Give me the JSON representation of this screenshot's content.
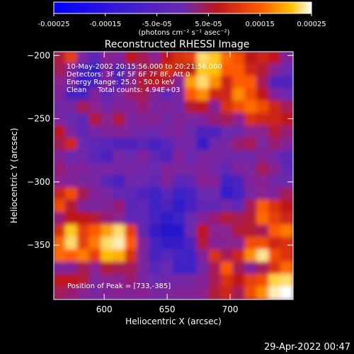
{
  "colorbar": {
    "tick_labels": [
      "-0.00025",
      "-0.00015",
      "-5.0e-05",
      "5.0e-05",
      "0.00015",
      "0.00025"
    ],
    "tick_values": [
      -0.00025,
      -0.00015,
      -5e-05,
      5e-05,
      0.00015,
      0.00025
    ],
    "range": [
      -0.00025,
      0.00025
    ],
    "units": "(photons cm⁻² s⁻¹ asec⁻²)",
    "stops": [
      {
        "v": -0.00025,
        "color": "#0000ff"
      },
      {
        "v": -0.00012,
        "color": "#3a1ad6"
      },
      {
        "v": 0.0,
        "color": "#6a2ab0"
      },
      {
        "v": 7e-05,
        "color": "#c01818"
      },
      {
        "v": 0.00015,
        "color": "#ff5a00"
      },
      {
        "v": 0.00021,
        "color": "#ffc000"
      },
      {
        "v": 0.00025,
        "color": "#ffffff"
      }
    ]
  },
  "chart_data": {
    "type": "heatmap",
    "title": "Reconstructed RHESSI Image",
    "xlabel": "Heliocentric X (arcsec)",
    "ylabel": "Heliocentric Y (arcsec)",
    "xlim": [
      560,
      750
    ],
    "ylim": [
      -393,
      -197
    ],
    "x_ticks": [
      600,
      650,
      700
    ],
    "x_tick_labels": [
      "600",
      "650",
      "700"
    ],
    "y_ticks": [
      -200,
      -250,
      -300,
      -350
    ],
    "y_tick_labels": [
      "−200",
      "−250",
      "−300",
      "−350"
    ],
    "info_lines": [
      "10-May-2002 20:15:56.000 to 20:21:56.000",
      "Detectors: 3F 4F 5F 6F 7F 8F, Att 0",
      "Energy Range: 25.0 - 50.0 keV",
      "Clean     Total counts: 4.94E+03"
    ],
    "peak_label": "Position of Peak = [733,-385]",
    "grid": false,
    "grid_cols": 20,
    "grid_rows": 20,
    "values": [
      [
        0.7,
        1.1,
        0.2,
        -0.2,
        0.4,
        0.3,
        0.8,
        0.6,
        0.4,
        0.8,
        1.0,
        1.1,
        2.2,
        2.0,
        1.4,
        1.2,
        0.8,
        0.9,
        0.8,
        0.3
      ],
      [
        0.6,
        0.3,
        -0.4,
        -0.6,
        0.3,
        -0.3,
        0.2,
        0.6,
        0.7,
        1.0,
        0.9,
        0.8,
        2.0,
        1.9,
        1.3,
        1.3,
        0.9,
        0.7,
        0.4,
        0.0
      ],
      [
        0.4,
        0.2,
        -0.6,
        -0.4,
        0.3,
        -0.3,
        0.4,
        0.7,
        0.8,
        0.7,
        0.3,
        1.7,
        2.2,
        1.6,
        0.9,
        1.3,
        1.3,
        0.6,
        -0.3,
        -0.3
      ],
      [
        0.3,
        -0.4,
        -0.4,
        0.3,
        -0.1,
        0.2,
        0.5,
        0.6,
        0.3,
        -0.1,
        0.2,
        1.3,
        1.6,
        0.9,
        0.9,
        1.6,
        1.2,
        0.8,
        0.3,
        0.0
      ],
      [
        0.1,
        0.2,
        0.6,
        0.4,
        0.1,
        0.3,
        0.3,
        0.5,
        0.2,
        0.3,
        0.1,
        0.7,
        0.8,
        0.3,
        1.0,
        1.2,
        1.4,
        1.2,
        0.9,
        0.6
      ],
      [
        0.2,
        0.0,
        -0.1,
        0.7,
        0.4,
        0.7,
        0.2,
        0.3,
        0.4,
        0.1,
        0.3,
        0.2,
        0.3,
        0.5,
        0.6,
        0.4,
        1.0,
        0.9,
        0.9,
        0.8
      ],
      [
        0.8,
        0.2,
        -0.1,
        0.1,
        0.3,
        0.3,
        0.2,
        0.1,
        0.0,
        0.2,
        0.3,
        0.0,
        -0.3,
        -0.3,
        0.0,
        0.1,
        0.4,
        0.4,
        0.7,
        0.5
      ],
      [
        0.6,
        0.9,
        0.0,
        -0.1,
        -0.2,
        -0.3,
        -0.3,
        -0.2,
        -0.4,
        -0.2,
        0.1,
        0.1,
        -0.6,
        0.1,
        0.2,
        0.5,
        0.6,
        0.2,
        0.5,
        0.3
      ],
      [
        0.3,
        0.0,
        0.1,
        -0.2,
        -0.4,
        0.2,
        0.0,
        0.3,
        -0.1,
        -0.3,
        0.3,
        0.0,
        0.2,
        0.2,
        0.1,
        0.1,
        0.1,
        0.3,
        0.1,
        -0.2
      ],
      [
        0.5,
        0.3,
        0.3,
        0.1,
        0.2,
        0.1,
        0.2,
        0.1,
        0.0,
        0.3,
        0.2,
        0.2,
        0.3,
        0.1,
        -0.1,
        0.3,
        0.2,
        0.6,
        0.4,
        -0.1
      ],
      [
        0.4,
        0.3,
        0.2,
        0.2,
        -0.2,
        -0.4,
        0.1,
        0.0,
        -0.1,
        0.3,
        -0.2,
        -0.1,
        0.4,
        0.3,
        -0.5,
        -0.3,
        0.3,
        0.4,
        0.1,
        0.0
      ],
      [
        0.9,
        1.2,
        0.6,
        0.3,
        0.2,
        -0.1,
        -0.1,
        -0.3,
        -0.5,
        -0.2,
        -0.5,
        -0.4,
        0.0,
        0.0,
        -0.6,
        -0.4,
        0.2,
        0.4,
        0.3,
        0.6
      ],
      [
        1.2,
        0.7,
        0.3,
        0.2,
        0.3,
        0.5,
        -0.2,
        -0.1,
        -0.5,
        -0.3,
        -0.7,
        -0.4,
        -0.1,
        -0.1,
        0.1,
        -0.1,
        0.6,
        1.3,
        1.0,
        0.8
      ],
      [
        0.5,
        0.8,
        0.8,
        0.7,
        0.5,
        0.4,
        -0.1,
        -0.1,
        -0.4,
        -0.7,
        -0.5,
        0.0,
        0.3,
        0.5,
        0.7,
        0.6,
        0.7,
        1.4,
        1.1,
        0.9
      ],
      [
        1.0,
        2.0,
        1.1,
        1.3,
        1.7,
        2.2,
        1.1,
        -0.1,
        -0.6,
        -0.8,
        -0.8,
        0.0,
        0.8,
        0.4,
        0.4,
        0.7,
        0.7,
        0.6,
        1.3,
        1.5
      ],
      [
        1.4,
        2.2,
        1.1,
        1.5,
        2.2,
        2.4,
        1.3,
        0.3,
        -0.4,
        -0.6,
        -0.6,
        -0.3,
        0.7,
        0.3,
        0.4,
        0.4,
        1.2,
        1.2,
        0.9,
        1.0
      ],
      [
        1.4,
        1.3,
        1.5,
        1.1,
        1.9,
        1.8,
        1.0,
        0.2,
        -0.4,
        -0.2,
        -0.4,
        -0.5,
        0.3,
        1.0,
        0.6,
        0.9,
        1.6,
        2.3,
        1.2,
        1.0
      ],
      [
        0.3,
        0.3,
        0.6,
        0.4,
        0.7,
        0.6,
        0.6,
        0.2,
        -0.2,
        0.0,
        -0.5,
        -0.5,
        0.1,
        0.6,
        1.3,
        0.6,
        0.3,
        0.6,
        1.0,
        1.4
      ],
      [
        0.8,
        0.8,
        0.7,
        0.2,
        0.4,
        0.4,
        0.5,
        0.2,
        0.0,
        0.1,
        0.1,
        0.2,
        0.3,
        0.6,
        1.0,
        0.8,
        1.1,
        1.2,
        2.1,
        2.2
      ],
      [
        0.6,
        0.5,
        0.4,
        0.2,
        0.3,
        0.4,
        0.3,
        0.4,
        0.2,
        0.2,
        0.3,
        0.3,
        0.4,
        0.7,
        0.9,
        0.6,
        1.2,
        1.6,
        2.4,
        2.6
      ]
    ]
  },
  "footer": {
    "timestamp": "29-Apr-2022 00:47"
  }
}
